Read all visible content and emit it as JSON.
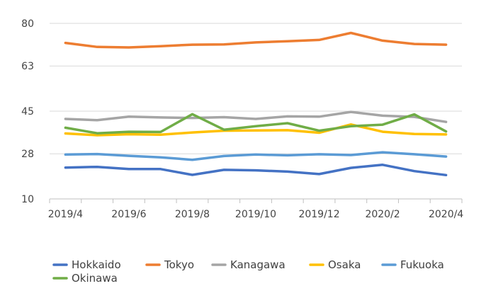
{
  "chart_data": {
    "type": "line",
    "title": "",
    "xlabel": "",
    "ylabel": "",
    "x": [
      "2019/4",
      "2019/5",
      "2019/6",
      "2019/7",
      "2019/8",
      "2019/9",
      "2019/10",
      "2019/11",
      "2019/12",
      "2020/1",
      "2020/2",
      "2020/3",
      "2020/4"
    ],
    "x_tick_labels": [
      "2019/4",
      "2019/6",
      "2019/8",
      "2019/10",
      "2019/12",
      "2020/2",
      "2020/4"
    ],
    "ylim": [
      10,
      80
    ],
    "y_ticks": [
      10,
      28,
      45,
      63,
      80
    ],
    "grid": "horizontal",
    "legend_position": "bottom",
    "series": [
      {
        "name": "Hokkaido",
        "color": "#4472C4",
        "values": [
          22.5,
          22.8,
          21.9,
          21.9,
          19.6,
          21.6,
          21.4,
          20.9,
          19.9,
          22.4,
          23.6,
          21.1,
          19.5
        ]
      },
      {
        "name": "Tokyo",
        "color": "#ED7D31",
        "values": [
          72.2,
          70.6,
          70.4,
          70.9,
          71.5,
          71.6,
          72.4,
          72.9,
          73.4,
          76.2,
          73.1,
          71.8,
          71.5
        ]
      },
      {
        "name": "Kanagawa",
        "color": "#A5A5A5",
        "values": [
          41.9,
          41.4,
          42.8,
          42.5,
          42.3,
          42.6,
          41.9,
          42.9,
          42.8,
          44.7,
          43.2,
          42.7,
          40.7
        ]
      },
      {
        "name": "Osaka",
        "color": "#FFC000",
        "values": [
          36.1,
          35.4,
          35.8,
          35.6,
          36.5,
          37.2,
          37.3,
          37.4,
          36.4,
          39.7,
          36.8,
          35.9,
          35.7
        ]
      },
      {
        "name": "Fukuoka",
        "color": "#5B9BD5",
        "values": [
          27.7,
          27.9,
          27.2,
          26.6,
          25.6,
          27.1,
          27.7,
          27.4,
          27.8,
          27.5,
          28.6,
          27.8,
          26.9
        ]
      },
      {
        "name": "Okinawa",
        "color": "#70AD47",
        "values": [
          38.4,
          36.2,
          36.8,
          36.7,
          43.8,
          37.6,
          39.0,
          40.2,
          37.2,
          39.0,
          39.6,
          43.7,
          36.9
        ]
      }
    ]
  }
}
